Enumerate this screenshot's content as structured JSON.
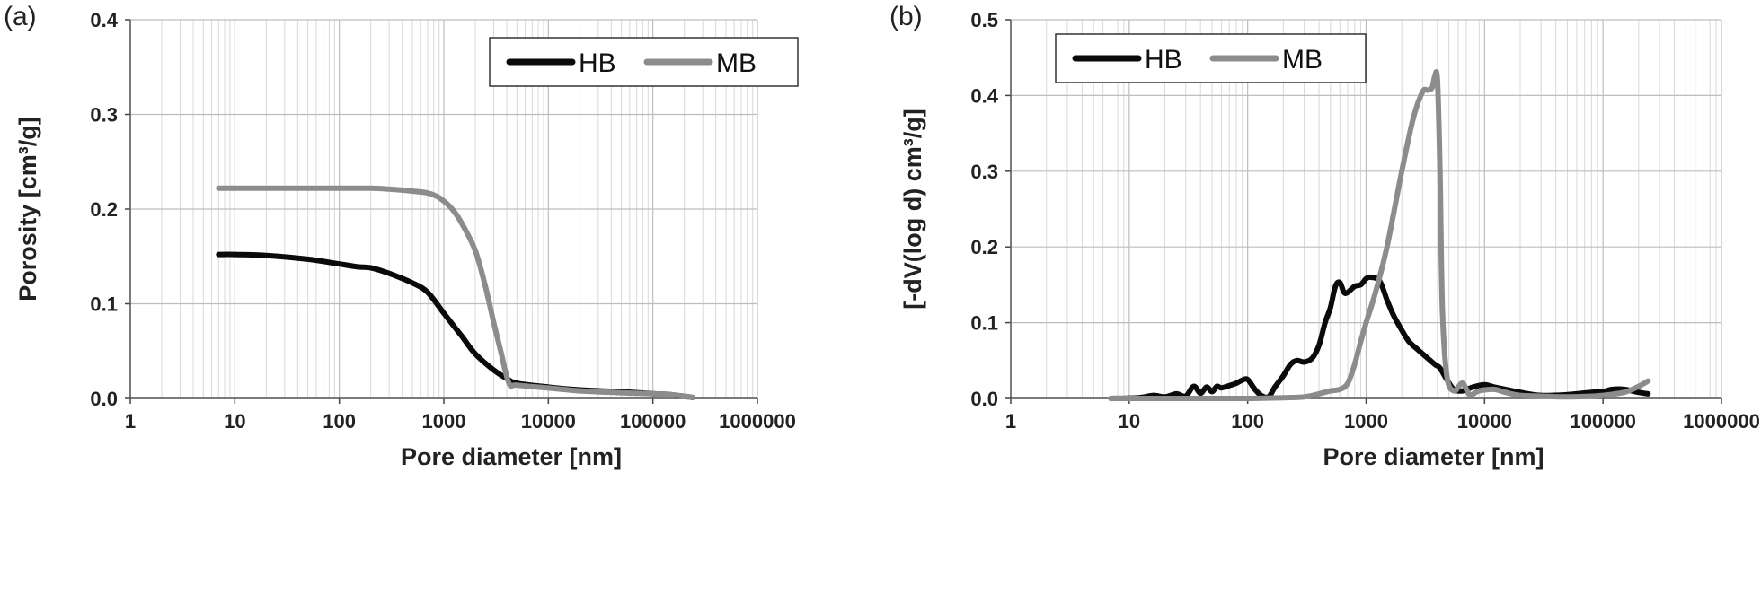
{
  "chart_data": [
    {
      "type": "line",
      "panel_label": "(a)",
      "xlabel": "Pore diameter [nm]",
      "ylabel": "Porosity [cm³/g]",
      "x_scale": "log",
      "xlim": [
        1,
        1000000
      ],
      "ylim": [
        0,
        0.4
      ],
      "x_ticks": [
        "1",
        "10",
        "100",
        "1000",
        "10000",
        "100000",
        "1000000"
      ],
      "y_ticks": [
        "0.0",
        "0.1",
        "0.2",
        "0.3",
        "0.4"
      ],
      "grid": true,
      "legend_position": "top-right",
      "series": [
        {
          "name": "HB",
          "color": "#0a0a0a",
          "x": [
            7,
            10,
            20,
            50,
            100,
            150,
            200,
            300,
            500,
            700,
            1000,
            1500,
            2000,
            3000,
            4000,
            5000,
            10000,
            20000,
            50000,
            100000,
            150000,
            240000
          ],
          "y": [
            0.152,
            0.152,
            0.151,
            0.147,
            0.142,
            0.139,
            0.138,
            0.132,
            0.122,
            0.112,
            0.09,
            0.065,
            0.047,
            0.03,
            0.021,
            0.016,
            0.012,
            0.009,
            0.007,
            0.005,
            0.004,
            0.001
          ]
        },
        {
          "name": "MB",
          "color": "#8c8c8c",
          "x": [
            7,
            10,
            50,
            100,
            200,
            300,
            500,
            700,
            900,
            1200,
            1500,
            2000,
            2500,
            3000,
            3500,
            4200,
            5000,
            10000,
            20000,
            50000,
            100000,
            150000,
            240000
          ],
          "y": [
            0.222,
            0.222,
            0.222,
            0.222,
            0.222,
            0.221,
            0.219,
            0.217,
            0.212,
            0.2,
            0.184,
            0.156,
            0.118,
            0.08,
            0.05,
            0.016,
            0.014,
            0.011,
            0.008,
            0.006,
            0.005,
            0.004,
            0.001
          ]
        }
      ]
    },
    {
      "type": "line",
      "panel_label": "(b)",
      "xlabel": "Pore diameter [nm]",
      "ylabel": "[-dV(log d) cm³/g]",
      "x_scale": "log",
      "xlim": [
        1,
        1000000
      ],
      "ylim": [
        0,
        0.5
      ],
      "x_ticks": [
        "1",
        "10",
        "100",
        "1000",
        "10000",
        "100000",
        "1000000"
      ],
      "y_ticks": [
        "0.0",
        "0.1",
        "0.2",
        "0.3",
        "0.4",
        "0.5"
      ],
      "grid": true,
      "legend_position": "top-left",
      "series": [
        {
          "name": "HB",
          "color": "#0a0a0a",
          "x": [
            7,
            12,
            16,
            20,
            25,
            30,
            35,
            40,
            45,
            50,
            55,
            60,
            70,
            80,
            90,
            100,
            115,
            130,
            150,
            170,
            200,
            230,
            260,
            300,
            350,
            400,
            450,
            500,
            550,
            600,
            650,
            700,
            800,
            900,
            1000,
            1100,
            1300,
            1500,
            1700,
            2000,
            2300,
            2700,
            3200,
            3800,
            4200,
            4800,
            5500,
            6500,
            8000,
            10000,
            12000,
            15000,
            20000,
            30000,
            50000,
            80000,
            100000,
            120000,
            150000,
            200000,
            240000
          ],
          "y": [
            0.0,
            0.001,
            0.004,
            0.002,
            0.006,
            0.003,
            0.016,
            0.007,
            0.015,
            0.009,
            0.016,
            0.014,
            0.017,
            0.02,
            0.024,
            0.025,
            0.012,
            0.004,
            0.002,
            0.015,
            0.03,
            0.045,
            0.05,
            0.048,
            0.053,
            0.07,
            0.1,
            0.12,
            0.148,
            0.153,
            0.14,
            0.14,
            0.148,
            0.15,
            0.158,
            0.16,
            0.155,
            0.13,
            0.11,
            0.09,
            0.075,
            0.065,
            0.055,
            0.045,
            0.04,
            0.025,
            0.012,
            0.01,
            0.015,
            0.018,
            0.015,
            0.012,
            0.008,
            0.004,
            0.005,
            0.008,
            0.009,
            0.012,
            0.012,
            0.008,
            0.006
          ]
        },
        {
          "name": "MB",
          "color": "#8c8c8c",
          "x": [
            7,
            50,
            100,
            200,
            300,
            400,
            500,
            600,
            700,
            800,
            900,
            1000,
            1200,
            1500,
            2000,
            2500,
            3000,
            3300,
            3600,
            3800,
            4000,
            4200,
            4400,
            4800,
            5500,
            6500,
            7500,
            9000,
            12000,
            15000,
            20000,
            30000,
            50000,
            80000,
            100000,
            150000,
            200000,
            240000
          ],
          "y": [
            0.0,
            0.0,
            0.0,
            0.001,
            0.002,
            0.006,
            0.01,
            0.012,
            0.02,
            0.045,
            0.075,
            0.1,
            0.14,
            0.2,
            0.3,
            0.37,
            0.405,
            0.407,
            0.41,
            0.425,
            0.42,
            0.3,
            0.12,
            0.03,
            0.01,
            0.02,
            0.005,
            0.01,
            0.012,
            0.008,
            0.004,
            0.003,
            0.002,
            0.003,
            0.004,
            0.008,
            0.016,
            0.023
          ]
        }
      ]
    }
  ]
}
